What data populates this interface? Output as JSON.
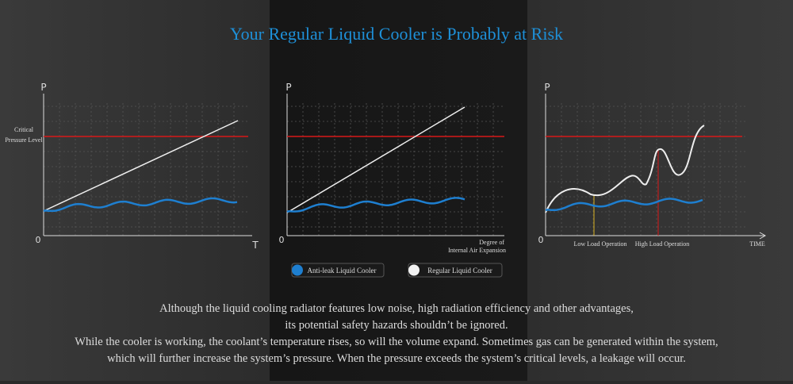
{
  "title": "Your Regular Liquid Cooler is Probably at Risk",
  "panels": [
    {
      "y_label": "P",
      "origin": "0",
      "x_label": "T",
      "critical_label_lines": [
        "Critical",
        "Pressure Level"
      ]
    },
    {
      "y_label": "P",
      "origin": "0",
      "x_label_lines": [
        "Degree of",
        "Internal Air Expansion"
      ]
    },
    {
      "y_label": "P",
      "origin": "0",
      "x_label": "TIME",
      "annotations": [
        "Low Load Operation",
        "High Load Operation"
      ]
    }
  ],
  "legend": [
    "Anti-leak Liquid Cooler",
    "Regular Liquid Cooler"
  ],
  "paragraph": [
    "Although the liquid cooling radiator features low noise, high radiation efficiency and other advantages,",
    "its potential safety hazards shouldn’t be ignored.",
    "While the cooler is working, the coolant’s temperature rises, so will the volume expand. Sometimes gas can be generated within the system,",
    "which will further increase the system’s pressure. When the pressure exceeds the system’s critical levels, a leakage will occur."
  ]
}
